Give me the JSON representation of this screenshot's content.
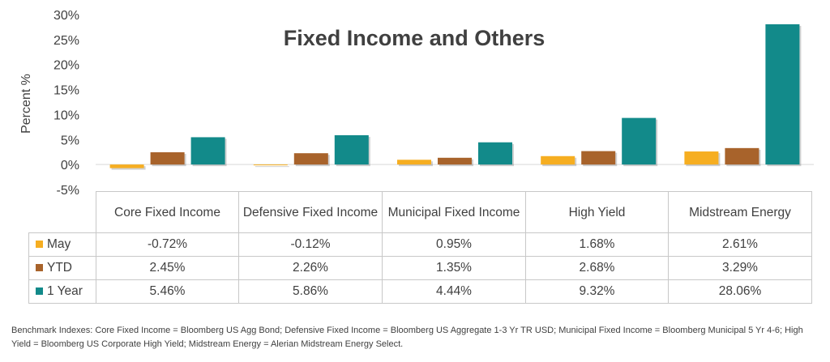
{
  "colors": {
    "May": "#f6ae21",
    "YTD": "#a8632b",
    "1 Year": "#128a8a",
    "text": "#404040",
    "grid": "#c8c8c8"
  },
  "chart_data": {
    "type": "bar",
    "title": "Fixed Income and Others",
    "ylabel": "Percent %",
    "xlabel": "",
    "ylim": [
      -5,
      30
    ],
    "yticks": [
      "-5%",
      "0%",
      "5%",
      "10%",
      "15%",
      "20%",
      "25%",
      "30%"
    ],
    "yticks_values": [
      -5,
      0,
      5,
      10,
      15,
      20,
      25,
      30
    ],
    "categories": [
      "Core Fixed Income",
      "Defensive Fixed Income",
      "Municipal Fixed Income",
      "High Yield",
      "Midstream Energy"
    ],
    "series": [
      {
        "name": "May",
        "values": [
          -0.72,
          -0.12,
          0.95,
          1.68,
          2.61
        ],
        "labels": [
          "-0.72%",
          "-0.12%",
          "0.95%",
          "1.68%",
          "2.61%"
        ]
      },
      {
        "name": "YTD",
        "values": [
          2.45,
          2.26,
          1.35,
          2.68,
          3.29
        ],
        "labels": [
          "2.45%",
          "2.26%",
          "1.35%",
          "2.68%",
          "3.29%"
        ]
      },
      {
        "name": "1 Year",
        "values": [
          5.46,
          5.86,
          4.44,
          9.32,
          28.06
        ],
        "labels": [
          "5.46%",
          "5.86%",
          "4.44%",
          "9.32%",
          "28.06%"
        ]
      }
    ],
    "legend": "table",
    "grid": false
  },
  "table": {
    "headers": [
      "Core Fixed Income",
      "Defensive Fixed Income",
      "Municipal Fixed Income",
      "High Yield",
      "Midstream Energy"
    ],
    "rows": [
      {
        "series": "May",
        "cells": [
          "-0.72%",
          "-0.12%",
          "0.95%",
          "1.68%",
          "2.61%"
        ]
      },
      {
        "series": "YTD",
        "cells": [
          "2.45%",
          "2.26%",
          "1.35%",
          "2.68%",
          "3.29%"
        ]
      },
      {
        "series": "1 Year",
        "cells": [
          "5.46%",
          "5.86%",
          "4.44%",
          "9.32%",
          "28.06%"
        ]
      }
    ]
  },
  "footnote": "Benchmark Indexes: Core Fixed Income = Bloomberg US Agg Bond; Defensive Fixed Income = Bloomberg US Aggregate 1-3 Yr TR USD; Municipal Fixed Income = Bloomberg Municipal 5 Yr 4-6; High Yield = Bloomberg US Corporate High Yield; Midstream Energy = Alerian Midstream Energy Select."
}
